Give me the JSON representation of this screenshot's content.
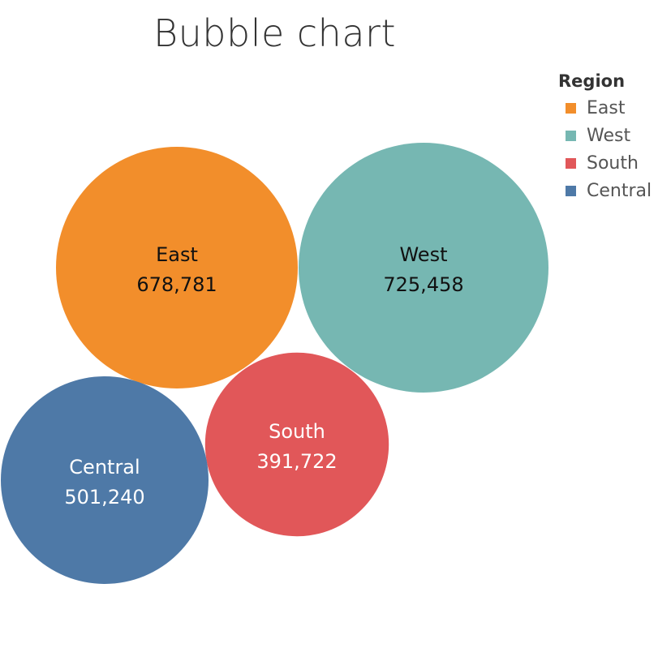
{
  "title": "Bubble chart",
  "legend": {
    "title": "Region",
    "items": [
      {
        "label": "East",
        "color": "#F28E2B"
      },
      {
        "label": "West",
        "color": "#76B7B2"
      },
      {
        "label": "South",
        "color": "#E15759"
      },
      {
        "label": "Central",
        "color": "#4E79A7"
      }
    ]
  },
  "chart_data": {
    "type": "bubble",
    "title": "Bubble chart",
    "legend_title": "Region",
    "legend_position": "top-right",
    "categories": [
      "East",
      "West",
      "South",
      "Central"
    ],
    "values": [
      678781,
      725458,
      391722,
      501240
    ],
    "value_labels": [
      "678,781",
      "725,458",
      "391,722",
      "501,240"
    ],
    "colors": [
      "#F28E2B",
      "#76B7B2",
      "#E15759",
      "#4E79A7"
    ],
    "label_colors": [
      "#111111",
      "#111111",
      "#ffffff",
      "#ffffff"
    ]
  }
}
